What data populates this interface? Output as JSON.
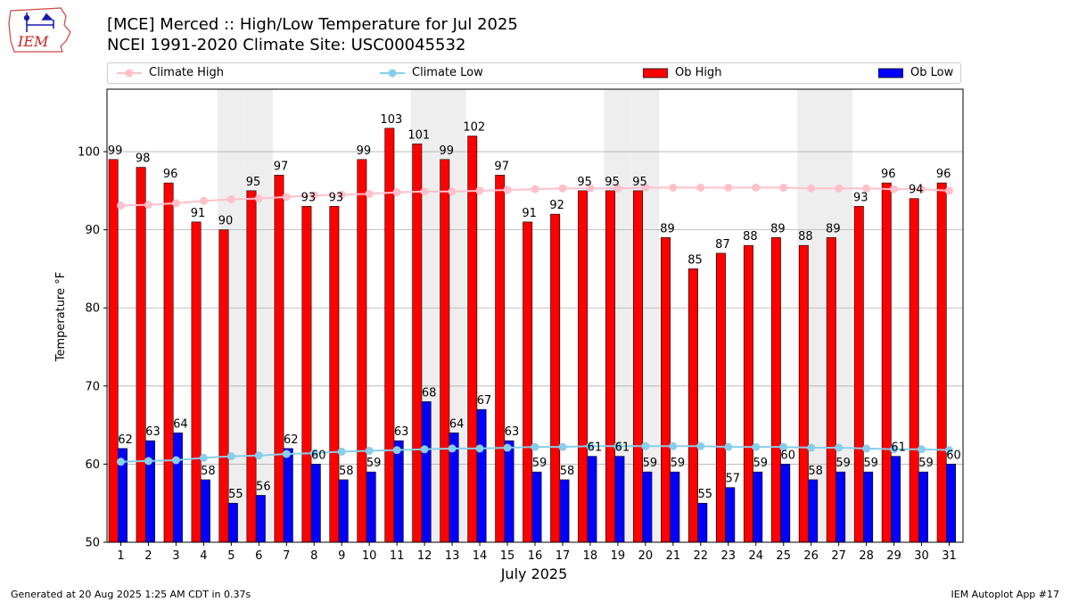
{
  "header": {
    "title_line1": "[MCE] Merced :: High/Low Temperature for Jul 2025",
    "title_line2": "NCEI 1991-2020 Climate Site: USC00045532",
    "logo_text": "IEM"
  },
  "legend": {
    "climate_high": "Climate High",
    "climate_low": "Climate Low",
    "ob_high": "Ob High",
    "ob_low": "Ob Low"
  },
  "footer": {
    "generated": "Generated at 20 Aug 2025 1:25 AM CDT in 0.37s",
    "app": "IEM Autoplot App #17"
  },
  "chart_data": {
    "type": "bar",
    "xlabel": "July 2025",
    "ylabel": "Temperature °F",
    "ylim": [
      50,
      108
    ],
    "yticks": [
      50,
      60,
      70,
      80,
      90,
      100
    ],
    "grid": "horizontal",
    "legend_position": "top",
    "categories": [
      "1",
      "2",
      "3",
      "4",
      "5",
      "6",
      "7",
      "8",
      "9",
      "10",
      "11",
      "12",
      "13",
      "14",
      "15",
      "16",
      "17",
      "18",
      "19",
      "20",
      "21",
      "22",
      "23",
      "24",
      "25",
      "26",
      "27",
      "28",
      "29",
      "30",
      "31"
    ],
    "weekend_shaded_days": [
      5,
      6,
      12,
      13,
      19,
      20,
      26,
      27
    ],
    "series": [
      {
        "name": "Ob High",
        "kind": "bar",
        "color": "#ff0000",
        "values": [
          99,
          98,
          96,
          91,
          90,
          95,
          97,
          93,
          93,
          99,
          103,
          101,
          99,
          102,
          97,
          91,
          92,
          95,
          95,
          95,
          89,
          85,
          87,
          88,
          89,
          88,
          89,
          93,
          96,
          94,
          96
        ]
      },
      {
        "name": "Ob Low",
        "kind": "bar",
        "color": "#0000ff",
        "values": [
          62,
          63,
          64,
          58,
          55,
          56,
          62,
          60,
          58,
          59,
          63,
          68,
          64,
          67,
          63,
          59,
          58,
          61,
          61,
          59,
          59,
          55,
          57,
          59,
          60,
          58,
          59,
          59,
          61,
          59,
          60
        ]
      },
      {
        "name": "Climate High",
        "kind": "line",
        "color": "#ffc0cb",
        "values": [
          93.1,
          93.2,
          93.4,
          93.7,
          93.9,
          94.0,
          94.2,
          94.4,
          94.5,
          94.6,
          94.8,
          94.9,
          94.9,
          95.0,
          95.1,
          95.2,
          95.3,
          95.3,
          95.3,
          95.4,
          95.4,
          95.4,
          95.4,
          95.4,
          95.4,
          95.3,
          95.3,
          95.3,
          95.2,
          95.2,
          95.0
        ]
      },
      {
        "name": "Climate Low",
        "kind": "line",
        "color": "#87ceeb",
        "values": [
          60.3,
          60.4,
          60.5,
          60.8,
          61.0,
          61.1,
          61.3,
          61.4,
          61.6,
          61.7,
          61.8,
          61.9,
          62.0,
          62.0,
          62.1,
          62.2,
          62.2,
          62.3,
          62.3,
          62.3,
          62.3,
          62.3,
          62.2,
          62.2,
          62.2,
          62.1,
          62.1,
          62.0,
          61.9,
          61.9,
          61.8
        ]
      }
    ],
    "colors": {
      "shade": "#eeeeee",
      "grid": "#b0b0b0"
    }
  }
}
